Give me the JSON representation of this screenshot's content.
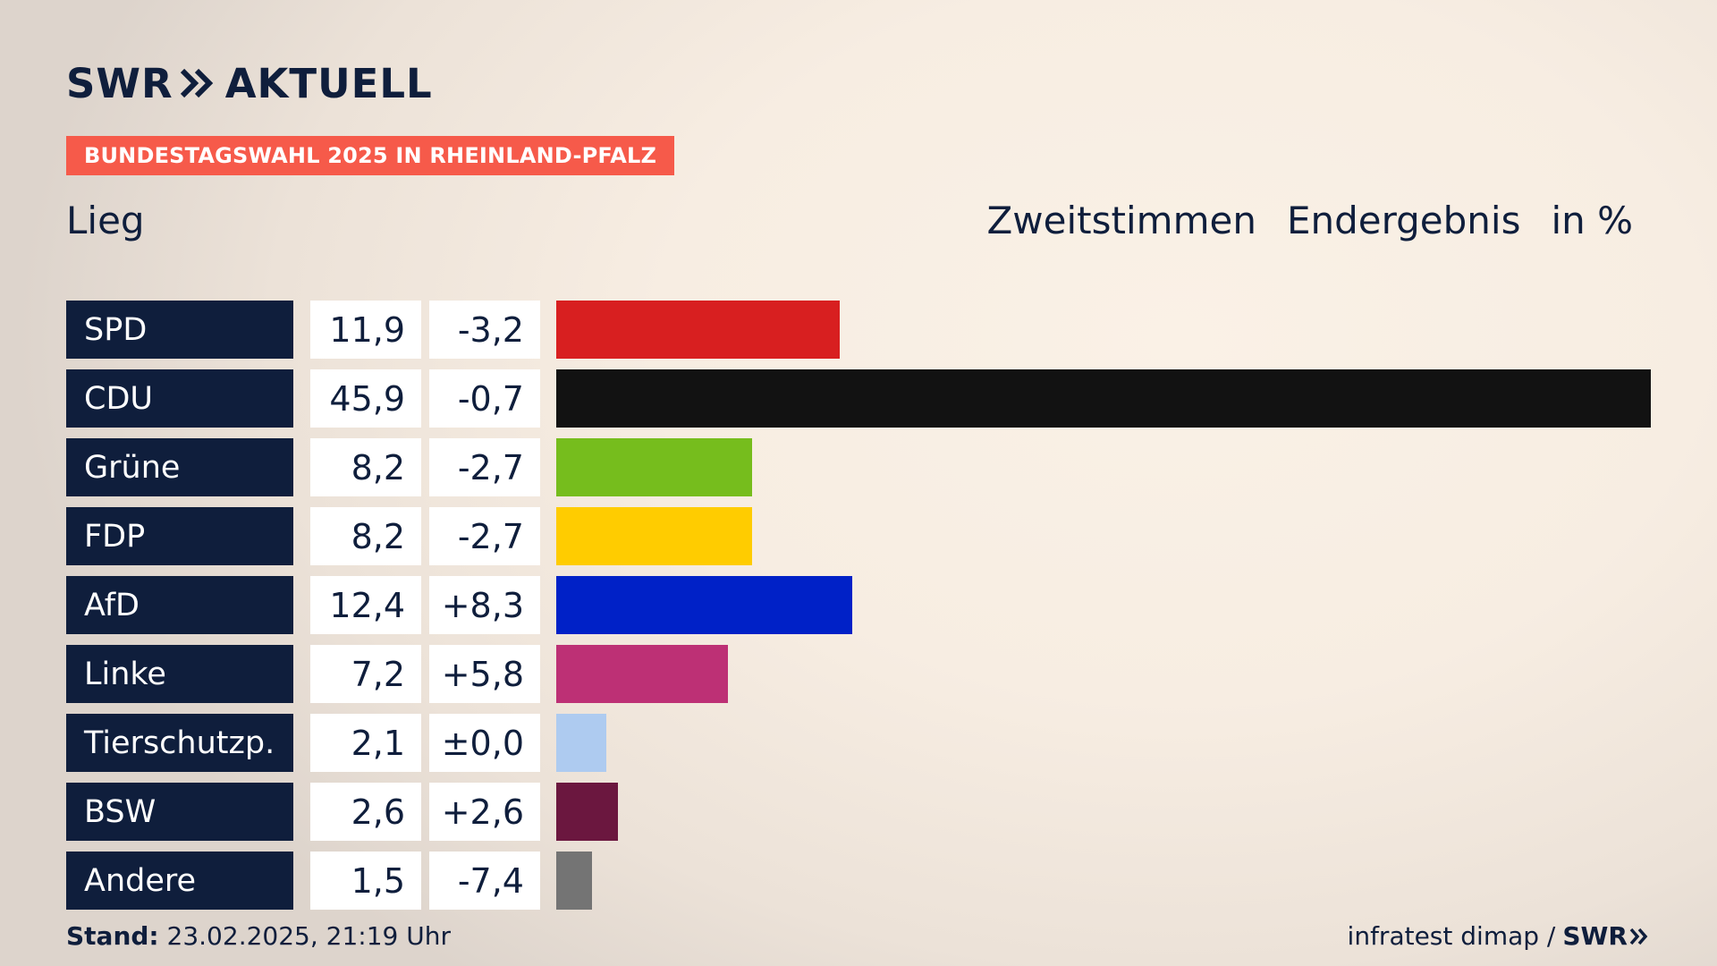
{
  "header": {
    "logo_left": "SWR",
    "logo_right": "AKTUELL",
    "badge": "BUNDESTAGSWAHL 2025 IN RHEINLAND-PFALZ",
    "subtitle_left": "Lieg",
    "subtitle_right": [
      "Zweitstimmen",
      "Endergebnis",
      "in %"
    ]
  },
  "colors": {
    "navy": "#0f1e3c",
    "badge": "#f65a4a"
  },
  "chart_data": {
    "type": "bar",
    "orientation": "horizontal",
    "xlim": [
      0,
      45.9
    ],
    "categories": [
      "SPD",
      "CDU",
      "Grüne",
      "FDP",
      "AfD",
      "Linke",
      "Tierschutzp.",
      "BSW",
      "Andere"
    ],
    "values": [
      11.9,
      45.9,
      8.2,
      8.2,
      12.4,
      7.2,
      2.1,
      2.6,
      1.5
    ],
    "value_labels": [
      "11,9",
      "45,9",
      "8,2",
      "8,2",
      "12,4",
      "7,2",
      "2,1",
      "2,6",
      "1,5"
    ],
    "diff_labels": [
      "-3,2",
      "-0,7",
      "-2,7",
      "-2,7",
      "+8,3",
      "+5,8",
      "±0,0",
      "+2,6",
      "-7,4"
    ],
    "bar_colors": [
      "#d81f20",
      "#121212",
      "#76bd1d",
      "#ffcc00",
      "#0021c7",
      "#bd3075",
      "#aecbf0",
      "#6b173f",
      "#747474"
    ]
  },
  "footer": {
    "stand_label": "Stand:",
    "stand_value": "23.02.2025, 21:19 Uhr",
    "source": "infratest dimap /",
    "source_logo": "SWR"
  }
}
